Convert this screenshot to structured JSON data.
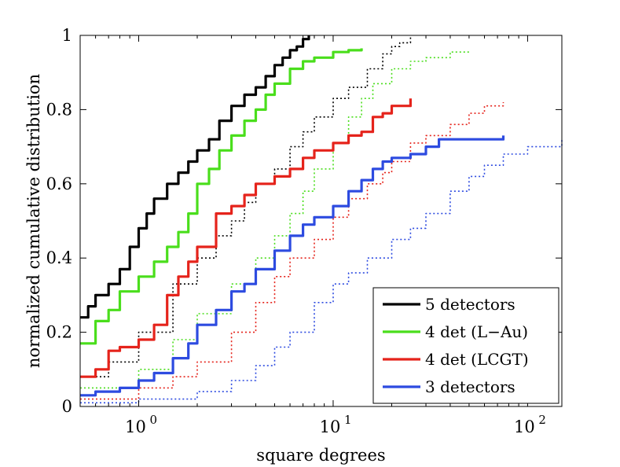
{
  "chart_data": {
    "type": "line",
    "title": "",
    "xlabel": "square degrees",
    "ylabel": "normalized cumulative distribution",
    "xscale": "log",
    "xlim": [
      0.5,
      150
    ],
    "ylim": [
      0,
      1
    ],
    "grid": false,
    "legend_position": "bottom-right",
    "x_ticks": [
      {
        "value": 1,
        "base": "10",
        "exp": "0"
      },
      {
        "value": 10,
        "base": "10",
        "exp": "1"
      },
      {
        "value": 100,
        "base": "10",
        "exp": "2"
      }
    ],
    "y_ticks": [
      {
        "value": 0,
        "label": "0"
      },
      {
        "value": 0.2,
        "label": "0.2"
      },
      {
        "value": 0.4,
        "label": "0.4"
      },
      {
        "value": 0.6,
        "label": "0.6"
      },
      {
        "value": 0.8,
        "label": "0.8"
      },
      {
        "value": 1,
        "label": "1"
      }
    ],
    "series": [
      {
        "name": "5 detectors",
        "color": "#000000",
        "style": "solid",
        "in_legend": true,
        "x": [
          0.5,
          0.55,
          0.6,
          0.7,
          0.8,
          0.9,
          1.0,
          1.1,
          1.2,
          1.4,
          1.6,
          1.8,
          2.0,
          2.3,
          2.6,
          3.0,
          3.5,
          4.0,
          4.5,
          5.0,
          5.5,
          6.0,
          6.5,
          7.0,
          7.5
        ],
        "y": [
          0.24,
          0.27,
          0.3,
          0.33,
          0.37,
          0.43,
          0.48,
          0.52,
          0.56,
          0.6,
          0.63,
          0.66,
          0.69,
          0.72,
          0.77,
          0.81,
          0.84,
          0.86,
          0.89,
          0.92,
          0.94,
          0.96,
          0.97,
          0.99,
          1.0
        ]
      },
      {
        "name": "4 det (L−Au)",
        "color": "#4ade1c",
        "style": "solid",
        "in_legend": true,
        "x": [
          0.5,
          0.6,
          0.7,
          0.8,
          1.0,
          1.2,
          1.4,
          1.6,
          1.8,
          2.0,
          2.3,
          2.6,
          3.0,
          3.5,
          4.0,
          4.5,
          5.0,
          6.0,
          7.0,
          8.0,
          10.0,
          12.0,
          14.0
        ],
        "y": [
          0.17,
          0.23,
          0.26,
          0.31,
          0.35,
          0.39,
          0.43,
          0.47,
          0.52,
          0.6,
          0.64,
          0.69,
          0.73,
          0.77,
          0.8,
          0.84,
          0.87,
          0.91,
          0.93,
          0.94,
          0.955,
          0.96,
          0.965
        ]
      },
      {
        "name": "4 det (LCGT)",
        "color": "#e5231b",
        "style": "solid",
        "in_legend": true,
        "x": [
          0.5,
          0.6,
          0.7,
          0.8,
          1.0,
          1.2,
          1.4,
          1.6,
          1.8,
          2.0,
          2.5,
          3.0,
          3.5,
          4.0,
          5.0,
          6.0,
          7.0,
          8.0,
          10.0,
          12.0,
          14.0,
          16.0,
          18.0,
          20.0,
          25.0
        ],
        "y": [
          0.08,
          0.1,
          0.15,
          0.16,
          0.18,
          0.22,
          0.3,
          0.35,
          0.39,
          0.43,
          0.52,
          0.54,
          0.57,
          0.6,
          0.62,
          0.64,
          0.67,
          0.69,
          0.71,
          0.73,
          0.74,
          0.78,
          0.79,
          0.81,
          0.83
        ]
      },
      {
        "name": "3 detectors",
        "color": "#2d4be0",
        "style": "solid",
        "in_legend": true,
        "x": [
          0.5,
          0.6,
          0.8,
          1.0,
          1.2,
          1.5,
          1.8,
          2.0,
          2.5,
          3.0,
          3.5,
          4.0,
          5.0,
          6.0,
          7.0,
          8.0,
          10.0,
          12.0,
          14.0,
          16.0,
          18.0,
          20.0,
          25.0,
          30.0,
          35.0,
          50.0,
          75.0
        ],
        "y": [
          0.03,
          0.04,
          0.05,
          0.07,
          0.09,
          0.13,
          0.17,
          0.22,
          0.26,
          0.31,
          0.33,
          0.37,
          0.42,
          0.46,
          0.49,
          0.51,
          0.54,
          0.58,
          0.61,
          0.64,
          0.66,
          0.67,
          0.68,
          0.7,
          0.72,
          0.72,
          0.73
        ]
      },
      {
        "name": "5 detectors (dotted)",
        "color": "#000000",
        "style": "dotted",
        "in_legend": false,
        "x": [
          0.5,
          0.7,
          1.0,
          1.5,
          2.0,
          2.5,
          3.0,
          3.5,
          4.0,
          5.0,
          6.0,
          7.0,
          8.0,
          10.0,
          12.0,
          15.0,
          18.0,
          20.0,
          22.0,
          25.0
        ],
        "y": [
          0.08,
          0.12,
          0.2,
          0.33,
          0.4,
          0.46,
          0.5,
          0.55,
          0.6,
          0.64,
          0.7,
          0.74,
          0.78,
          0.83,
          0.86,
          0.91,
          0.95,
          0.97,
          0.98,
          1.0
        ]
      },
      {
        "name": "4 det (L−Au) (dotted)",
        "color": "#4ade1c",
        "style": "dotted",
        "in_legend": false,
        "x": [
          0.5,
          1.0,
          1.5,
          2.0,
          3.0,
          4.0,
          5.0,
          6.0,
          7.0,
          8.0,
          10.0,
          12.0,
          14.0,
          16.0,
          20.0,
          25.0,
          30.0,
          40.0,
          50.0
        ],
        "y": [
          0.05,
          0.1,
          0.18,
          0.25,
          0.33,
          0.4,
          0.46,
          0.52,
          0.58,
          0.64,
          0.71,
          0.78,
          0.83,
          0.87,
          0.91,
          0.93,
          0.94,
          0.955,
          0.96
        ]
      },
      {
        "name": "4 det (LCGT) (dotted)",
        "color": "#e5231b",
        "style": "dotted",
        "in_legend": false,
        "x": [
          0.5,
          1.0,
          1.5,
          2.0,
          3.0,
          4.0,
          5.0,
          6.0,
          8.0,
          10.0,
          12.0,
          15.0,
          18.0,
          20.0,
          25.0,
          30.0,
          40.0,
          50.0,
          60.0,
          75.0
        ],
        "y": [
          0.02,
          0.05,
          0.08,
          0.12,
          0.2,
          0.28,
          0.35,
          0.4,
          0.45,
          0.51,
          0.56,
          0.6,
          0.63,
          0.66,
          0.71,
          0.73,
          0.76,
          0.79,
          0.81,
          0.82
        ]
      },
      {
        "name": "3 detectors (dotted)",
        "color": "#2d4be0",
        "style": "dotted",
        "in_legend": false,
        "x": [
          0.5,
          1.0,
          2.0,
          3.0,
          4.0,
          5.0,
          6.0,
          8.0,
          10.0,
          12.0,
          15.0,
          20.0,
          25.0,
          30.0,
          40.0,
          50.0,
          60.0,
          75.0,
          100.0,
          150.0
        ],
        "y": [
          0.01,
          0.02,
          0.04,
          0.07,
          0.11,
          0.16,
          0.2,
          0.28,
          0.33,
          0.36,
          0.4,
          0.45,
          0.48,
          0.52,
          0.58,
          0.62,
          0.65,
          0.68,
          0.7,
          0.72
        ]
      }
    ]
  }
}
